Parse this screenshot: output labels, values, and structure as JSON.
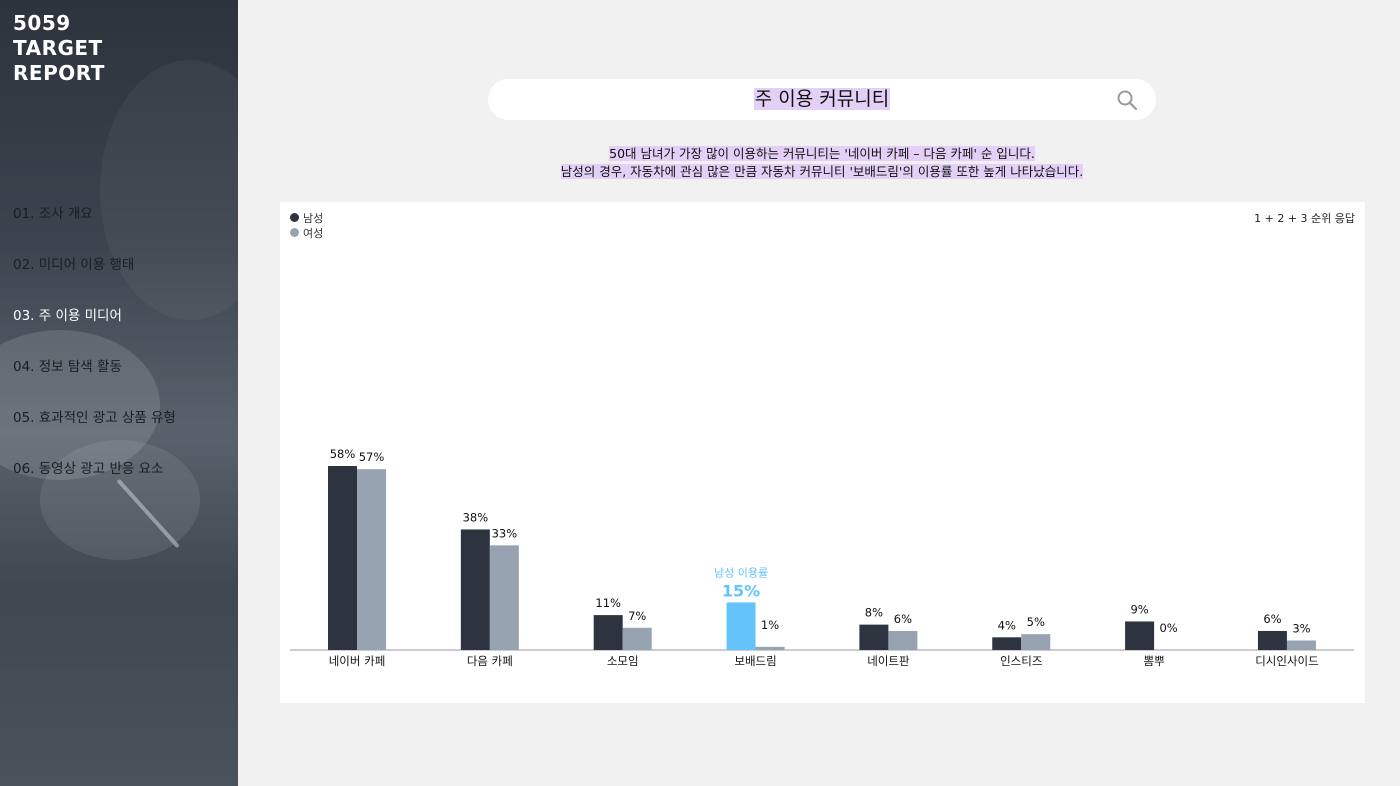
{
  "brand": {
    "line1": "5059",
    "line2": "TARGET",
    "line3": "REPORT"
  },
  "nav": {
    "items": [
      {
        "label": "01. 조사 개요",
        "active": false
      },
      {
        "label": "02. 미디어 이용 행태",
        "active": false
      },
      {
        "label": "03. 주 이용 미디어",
        "active": true
      },
      {
        "label": "04. 정보 탐색 활동",
        "active": false
      },
      {
        "label": "05. 효과적인 광고 상품 유형",
        "active": false
      },
      {
        "label": "06. 동영상 광고 반응 요소",
        "active": false
      }
    ]
  },
  "search": {
    "title": "주 이용 커뮤니티",
    "icon": "search-icon"
  },
  "description": {
    "line1": "50대 남녀가 가장 많이 이용하는 커뮤니티는 '네이버 카페 – 다음 카페' 순 입니다.",
    "line2": "남성의 경우, 자동차에 관심 많은 만큼 자동차 커뮤니티 '보배드림'의 이용률 또한 높게 나타났습니다."
  },
  "note": "1 + 2 + 3 순위 응답",
  "highlight": {
    "label": "남성 이용률",
    "value": "15%",
    "category_index": 3,
    "color": "#64c4fa"
  },
  "colors": {
    "male": "#2e343f",
    "female": "#98a3b1",
    "highlight_label": "#64c4fa"
  },
  "chart_data": {
    "type": "bar",
    "categories": [
      "네이버 카페",
      "다음 카페",
      "소모임",
      "보배드림",
      "네이트판",
      "인스티즈",
      "뽐뿌",
      "디시인사이드"
    ],
    "series": [
      {
        "name": "남성",
        "values": [
          58,
          38,
          11,
          15,
          8,
          4,
          9,
          6
        ],
        "labels": [
          "58%",
          "38%",
          "11%",
          "15%",
          "8%",
          "4%",
          "9%",
          "6%"
        ]
      },
      {
        "name": "여성",
        "values": [
          57,
          33,
          7,
          1,
          6,
          5,
          0,
          3
        ],
        "labels": [
          "57%",
          "33%",
          "7%",
          "1%",
          "6%",
          "5%",
          "0%",
          "3%"
        ]
      }
    ],
    "legend_position": "top-left",
    "grid": false,
    "ylim": [
      0,
      60
    ]
  }
}
